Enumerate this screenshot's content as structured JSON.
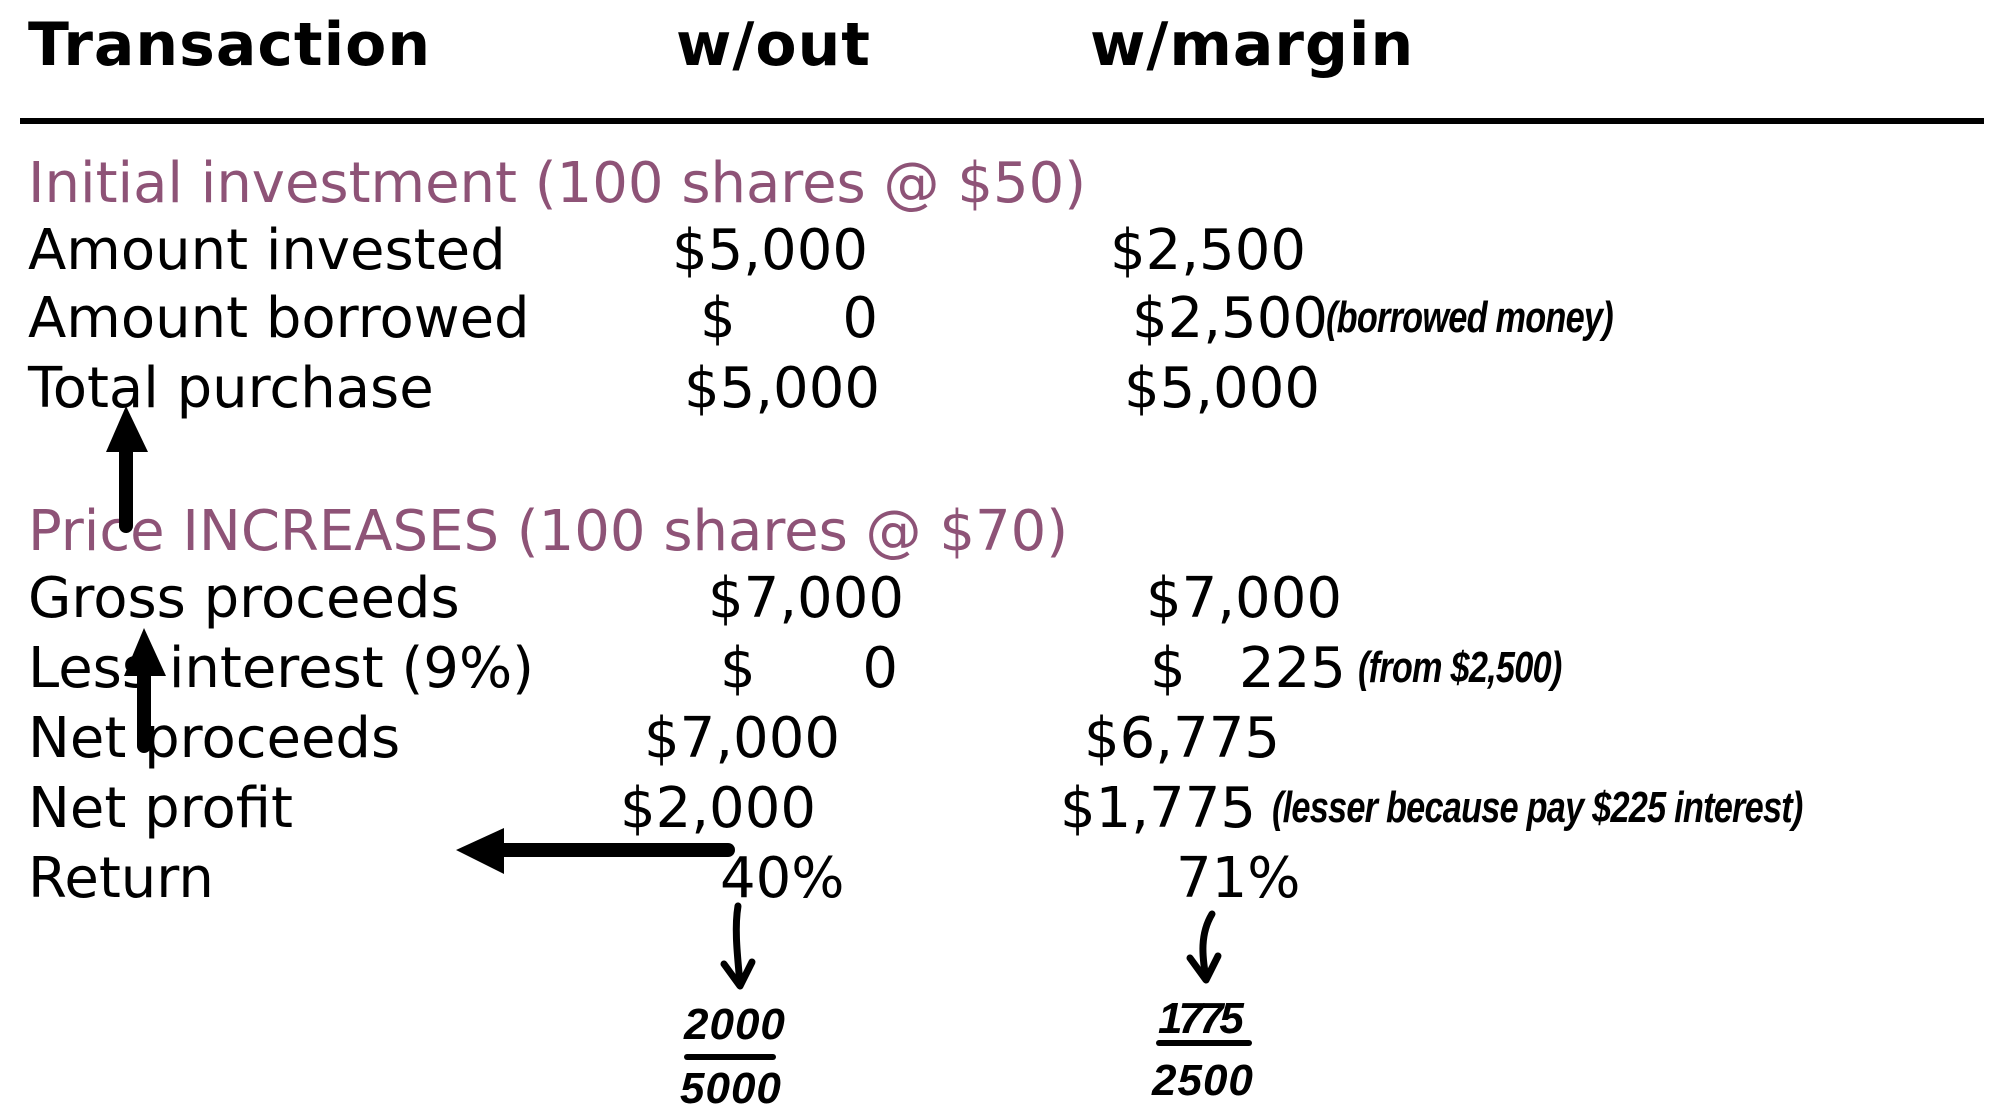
{
  "header": {
    "col_transaction": "Transaction",
    "col_without": "w/out",
    "col_margin": "w/margin"
  },
  "sections": {
    "initial_title": "Initial investment (100 shares @ $50)",
    "price_title": "Price INCREASES (100 shares @ $70)"
  },
  "rows": {
    "amount_invested": {
      "label": "Amount invested",
      "without": "$5,000",
      "margin": "$2,500"
    },
    "amount_borrowed": {
      "label": "Amount borrowed",
      "without": "$      0",
      "margin": "$2,500"
    },
    "total_purchase": {
      "label": "Total purchase",
      "without": "$5,000",
      "margin": "$5,000"
    },
    "gross_proceeds": {
      "label": "Gross proceeds",
      "without": "$7,000",
      "margin": "$7,000"
    },
    "less_interest": {
      "label": "Less interest (9%)",
      "without": "$      0",
      "margin": "$   225"
    },
    "net_proceeds": {
      "label": "Net proceeds",
      "without": "$7,000",
      "margin": "$6,775"
    },
    "net_profit": {
      "label": "Net profit",
      "without": "$2,000",
      "margin": "$1,775"
    },
    "return": {
      "label": "Return",
      "without": "40%",
      "margin": "71%"
    }
  },
  "annotations": {
    "borrowed_note": "(borrowed money)",
    "interest_note": "(from $2,500)",
    "profit_note": "(lesser because pay $225 interest)",
    "without_fraction": {
      "numerator": "2000",
      "denominator": "5000"
    },
    "margin_fraction": {
      "numerator": "1775",
      "denominator": "2500"
    }
  },
  "colors": {
    "section_title": "#8e5377",
    "text": "#000000"
  },
  "icons": [
    "up-arrow-icon",
    "left-arrow-icon",
    "down-arrow-icon"
  ]
}
